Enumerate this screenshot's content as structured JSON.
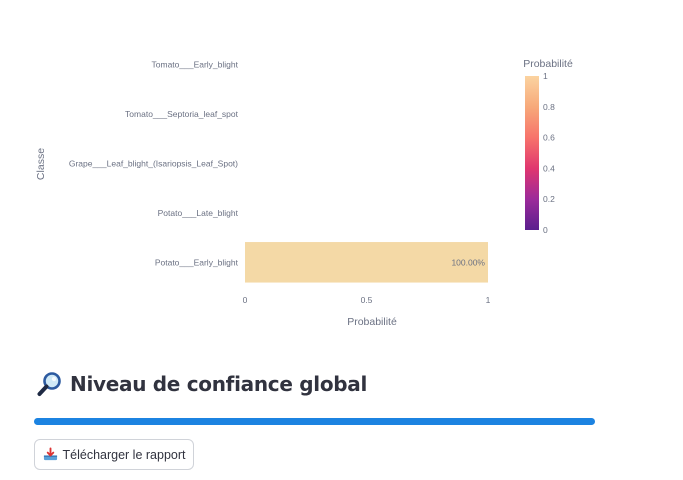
{
  "chart_data": {
    "type": "bar",
    "orientation": "horizontal",
    "categories": [
      "Potato___Early_blight",
      "Potato___Late_blight",
      "Grape___Leaf_blight_(Isariopsis_Leaf_Spot)",
      "Tomato___Septoria_leaf_spot",
      "Tomato___Early_blight"
    ],
    "values": [
      1.0,
      0.0,
      0.0,
      0.0,
      0.0
    ],
    "data_labels": [
      "100.00%",
      "",
      "",
      "",
      ""
    ],
    "xlabel": "Probabilité",
    "ylabel": "Classe",
    "xlim": [
      0,
      1
    ],
    "x_ticks": [
      "0",
      "0.5",
      "1"
    ],
    "colorbar": {
      "title": "Probabilité",
      "range": [
        0,
        1
      ],
      "ticks": [
        "0",
        "0.2",
        "0.4",
        "0.6",
        "0.8",
        "1"
      ],
      "colorscale": [
        "#5a1f8e",
        "#9c2a9a",
        "#e0366f",
        "#f7736b",
        "#f7a97a",
        "#fbd3a0"
      ]
    },
    "bar_color": "#f4d9a6",
    "grid": false
  },
  "confidence": {
    "title": "Niveau de confiance global",
    "icon": "magnifier-icon",
    "progress": 1.0,
    "color": "#1c83e1"
  },
  "download": {
    "label": "Télécharger le rapport",
    "icon": "download-tray-icon"
  }
}
